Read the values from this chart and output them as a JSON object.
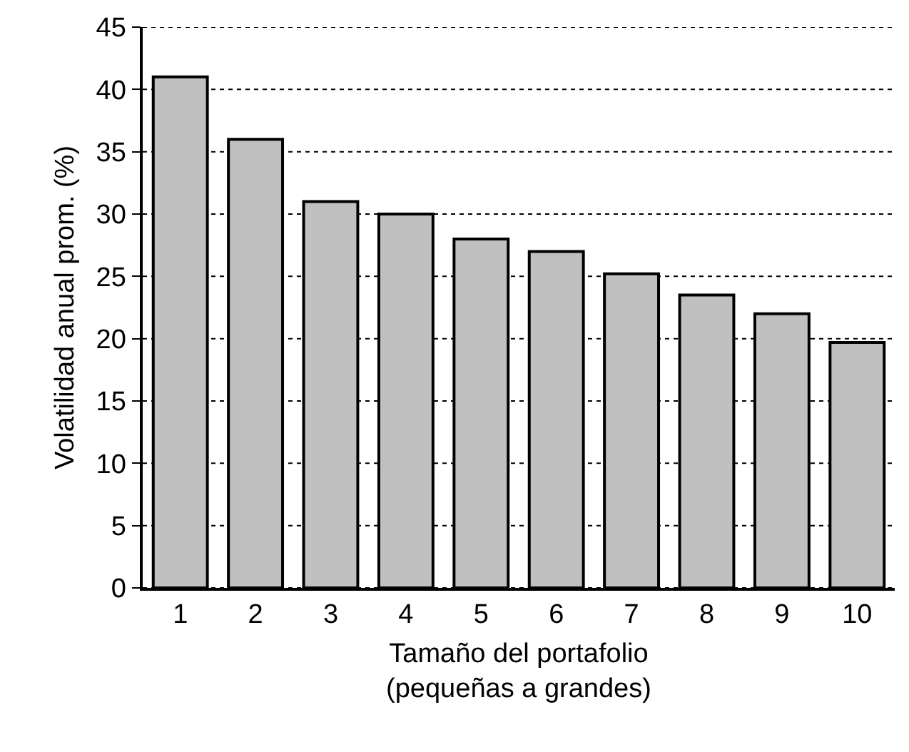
{
  "chart_data": {
    "type": "bar",
    "xlabel": "Tamaño del portafolio\n(pequeñas a grandes)",
    "ylabel": "Volatilidad anual prom. (%)",
    "categories": [
      "1",
      "2",
      "3",
      "4",
      "5",
      "6",
      "7",
      "8",
      "9",
      "10"
    ],
    "values": [
      41,
      36,
      31,
      30,
      28,
      27,
      25.2,
      23.5,
      22,
      19.7
    ],
    "color": "#c0c0c0",
    "ylim": [
      0,
      45
    ],
    "yticks": [
      0,
      5,
      10,
      15,
      20,
      25,
      30,
      35,
      40,
      45
    ],
    "grid": "y"
  }
}
